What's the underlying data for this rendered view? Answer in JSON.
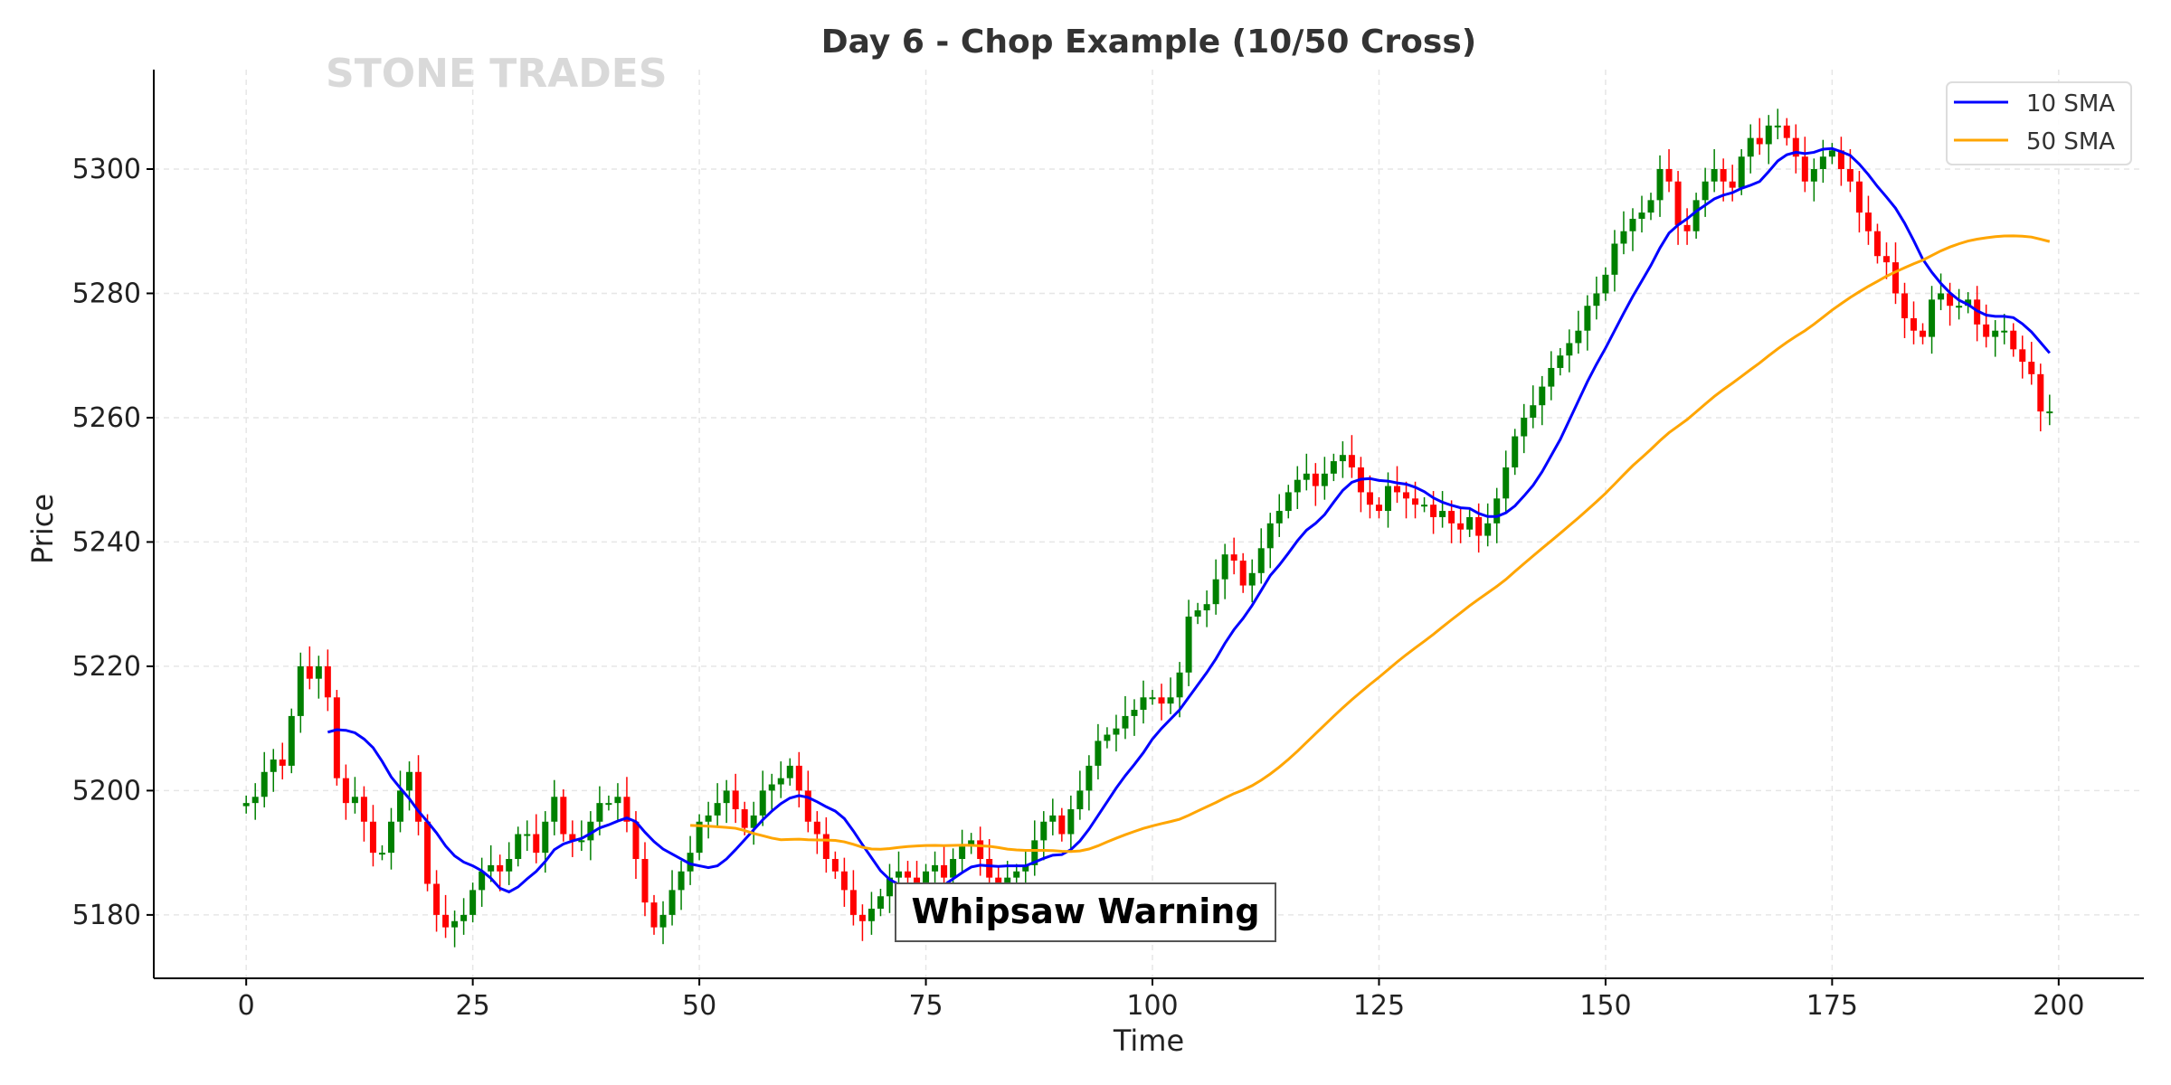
{
  "chart_data": {
    "type": "candlestick",
    "title": "Day 6 - Chop Example (10/50 Cross)",
    "xlabel": "Time",
    "ylabel": "Price",
    "xlim": [
      -10.2,
      209.4
    ],
    "ylim": [
      5169.8,
      5316
    ],
    "xticks": [
      0,
      25,
      50,
      75,
      100,
      125,
      150,
      175,
      200
    ],
    "yticks": [
      5180,
      5200,
      5220,
      5240,
      5260,
      5280,
      5300
    ],
    "grid": true,
    "watermark": "STONE TRADES",
    "annotation": {
      "text": "Whipsaw Warning",
      "x": 72,
      "y": 5181
    },
    "legend": {
      "placement": "top-right",
      "entries": [
        {
          "label": "10 SMA",
          "color": "#0000ff",
          "period": 10
        },
        {
          "label": "50 SMA",
          "color": "#ffa500",
          "period": 50
        }
      ]
    },
    "colors": {
      "up": "#008000",
      "down": "#ff0000"
    },
    "close": [
      5198,
      5199,
      5203,
      5205,
      5204,
      5212,
      5220,
      5218,
      5220,
      5215,
      5202,
      5198,
      5199,
      5195,
      5190,
      5190,
      5195,
      5200,
      5203,
      5195,
      5185,
      5180,
      5178,
      5179,
      5180,
      5184,
      5187,
      5188,
      5187,
      5189,
      5193,
      5193,
      5190,
      5195,
      5199,
      5193,
      5192,
      5192,
      5195,
      5198,
      5198,
      5199,
      5195,
      5189,
      5182,
      5178,
      5180,
      5184,
      5187,
      5190,
      5195,
      5196,
      5198,
      5200,
      5197,
      5194,
      5196,
      5200,
      5201,
      5202,
      5204,
      5200,
      5195,
      5193,
      5189,
      5187,
      5184,
      5180,
      5179,
      5181,
      5183,
      5186,
      5187,
      5186,
      5185,
      5187,
      5188,
      5186,
      5189,
      5191,
      5192,
      5189,
      5186,
      5185,
      5186,
      5187,
      5188,
      5192,
      5195,
      5196,
      5193,
      5197,
      5200,
      5204,
      5208,
      5209,
      5210,
      5212,
      5213,
      5215,
      5215,
      5214,
      5215,
      5219,
      5228,
      5229,
      5230,
      5234,
      5238,
      5237,
      5233,
      5235,
      5239,
      5243,
      5245,
      5248,
      5250,
      5251,
      5249,
      5251,
      5253,
      5254,
      5252,
      5248,
      5246,
      5245,
      5249,
      5248,
      5247,
      5246,
      5246,
      5244,
      5245,
      5243,
      5242,
      5244,
      5241,
      5243,
      5247,
      5252,
      5257,
      5260,
      5262,
      5265,
      5268,
      5270,
      5272,
      5274,
      5278,
      5280,
      5283,
      5288,
      5290,
      5292,
      5293,
      5295,
      5300,
      5298,
      5291,
      5290,
      5295,
      5298,
      5300,
      5298,
      5297,
      5302,
      5305,
      5304,
      5307,
      5307,
      5305,
      5302,
      5298,
      5300,
      5302,
      5303,
      5300,
      5298,
      5293,
      5290,
      5286,
      5285,
      5280,
      5276,
      5274,
      5273,
      5279,
      5280,
      5278,
      5278,
      5279,
      5275,
      5273,
      5274,
      5274,
      5271,
      5269,
      5267,
      5261,
      5261
    ]
  }
}
